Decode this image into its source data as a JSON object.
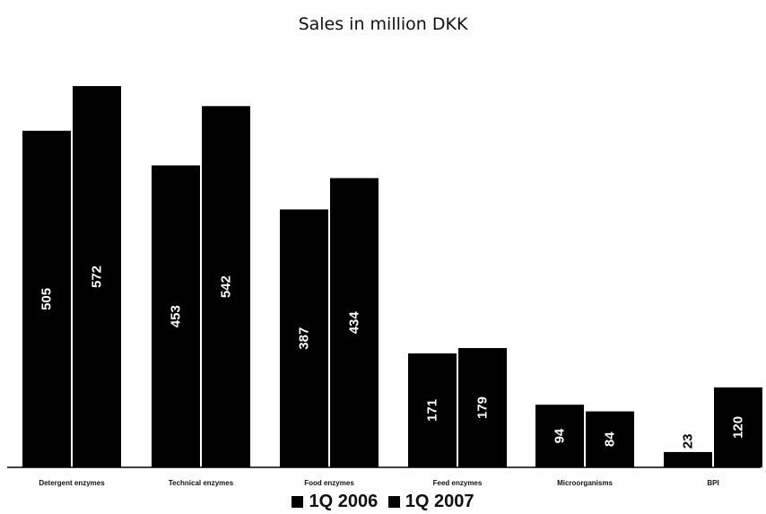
{
  "chart_data": {
    "type": "bar",
    "title": "Sales in million DKK",
    "xlabel": "",
    "ylabel": "",
    "ylim": [
      0,
      600
    ],
    "grid": false,
    "legend_position": "bottom",
    "categories": [
      "Detergent enzymes",
      "Technical enzymes",
      "Food enzymes",
      "Feed enzymes",
      "Microorganisms",
      "BPI"
    ],
    "series": [
      {
        "name": "1Q 2006",
        "values": [
          505,
          453,
          387,
          171,
          94,
          23
        ]
      },
      {
        "name": "1Q 2007",
        "values": [
          572,
          542,
          434,
          179,
          84,
          120
        ]
      }
    ],
    "colors": {
      "bar": "#000000",
      "label": "#ffffff"
    }
  }
}
